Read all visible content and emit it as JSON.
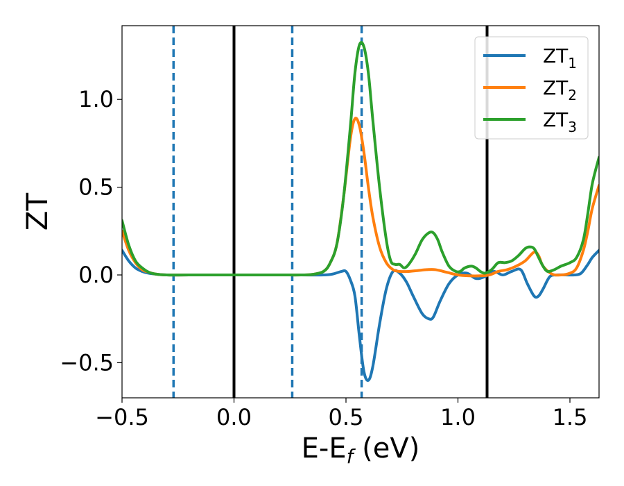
{
  "chart_data": {
    "type": "line",
    "xlabel": "E-E",
    "xlabel_sub": "f",
    "xlabel_unit": " (eV)",
    "ylabel": "ZT",
    "xlim": [
      -0.5,
      1.63
    ],
    "ylim": [
      -0.7,
      1.42
    ],
    "xticks": [
      -0.5,
      0.0,
      0.5,
      1.0,
      1.5
    ],
    "xtick_labels": [
      "−0.5",
      "0.0",
      "0.5",
      "1.0",
      "1.5"
    ],
    "yticks": [
      -0.5,
      0.0,
      0.5,
      1.0
    ],
    "ytick_labels": [
      "−0.5",
      "0.0",
      "0.5",
      "1.0"
    ],
    "grid": false,
    "legend_position": "top-right",
    "vlines": [
      {
        "x": -0.27,
        "style": "dashed",
        "color": "#1f77b4"
      },
      {
        "x": 0.0,
        "style": "solid",
        "color": "#000000"
      },
      {
        "x": 0.26,
        "style": "dashed",
        "color": "#1f77b4"
      },
      {
        "x": 0.57,
        "style": "dashed",
        "color": "#1f77b4"
      },
      {
        "x": 1.13,
        "style": "solid",
        "color": "#000000"
      }
    ],
    "series": [
      {
        "name": "ZT",
        "name_sub": "1",
        "color": "#1f77b4",
        "x": [
          -0.5,
          -0.47,
          -0.44,
          -0.41,
          -0.38,
          -0.35,
          -0.3,
          -0.2,
          0.0,
          0.2,
          0.3,
          0.4,
          0.44,
          0.48,
          0.5,
          0.52,
          0.54,
          0.56,
          0.58,
          0.6,
          0.62,
          0.65,
          0.68,
          0.71,
          0.74,
          0.77,
          0.8,
          0.84,
          0.87,
          0.89,
          0.92,
          0.96,
          1.0,
          1.04,
          1.08,
          1.12,
          1.16,
          1.2,
          1.24,
          1.28,
          1.31,
          1.34,
          1.36,
          1.38,
          1.41,
          1.44,
          1.48,
          1.52,
          1.55,
          1.58,
          1.6,
          1.63
        ],
        "values": [
          0.14,
          0.08,
          0.04,
          0.02,
          0.01,
          0.005,
          0.0,
          0.0,
          0.0,
          0.0,
          0.0,
          0.0,
          0.005,
          0.02,
          0.02,
          -0.03,
          -0.12,
          -0.35,
          -0.55,
          -0.6,
          -0.52,
          -0.28,
          -0.08,
          0.02,
          0.01,
          -0.04,
          -0.12,
          -0.22,
          -0.25,
          -0.24,
          -0.15,
          -0.05,
          0.0,
          0.01,
          -0.02,
          -0.01,
          0.02,
          0.0,
          0.02,
          0.03,
          -0.05,
          -0.12,
          -0.12,
          -0.08,
          -0.01,
          0.0,
          0.0,
          0.0,
          0.01,
          0.06,
          0.1,
          0.14
        ]
      },
      {
        "name": "ZT",
        "name_sub": "2",
        "color": "#ff7f0e",
        "x": [
          -0.5,
          -0.47,
          -0.44,
          -0.41,
          -0.38,
          -0.35,
          -0.3,
          -0.2,
          0.0,
          0.2,
          0.3,
          0.35,
          0.4,
          0.43,
          0.46,
          0.49,
          0.52,
          0.54,
          0.56,
          0.58,
          0.6,
          0.62,
          0.65,
          0.68,
          0.71,
          0.74,
          0.78,
          0.82,
          0.86,
          0.9,
          0.95,
          1.0,
          1.05,
          1.1,
          1.14,
          1.18,
          1.22,
          1.26,
          1.3,
          1.34,
          1.36,
          1.38,
          1.42,
          1.46,
          1.5,
          1.53,
          1.56,
          1.58,
          1.6,
          1.63
        ],
        "values": [
          0.25,
          0.14,
          0.07,
          0.03,
          0.015,
          0.005,
          0.0,
          0.0,
          0.0,
          0.0,
          0.0,
          0.003,
          0.02,
          0.07,
          0.18,
          0.45,
          0.78,
          0.89,
          0.85,
          0.7,
          0.5,
          0.33,
          0.16,
          0.07,
          0.03,
          0.02,
          0.02,
          0.025,
          0.03,
          0.03,
          0.015,
          0.0,
          -0.005,
          -0.005,
          0.0,
          0.02,
          0.03,
          0.05,
          0.08,
          0.13,
          0.11,
          0.05,
          0.005,
          0.0,
          0.01,
          0.04,
          0.14,
          0.25,
          0.38,
          0.51
        ]
      },
      {
        "name": "ZT",
        "name_sub": "3",
        "color": "#2ca02c",
        "x": [
          -0.5,
          -0.47,
          -0.44,
          -0.41,
          -0.38,
          -0.35,
          -0.3,
          -0.2,
          0.0,
          0.2,
          0.3,
          0.35,
          0.4,
          0.43,
          0.46,
          0.49,
          0.52,
          0.54,
          0.56,
          0.58,
          0.6,
          0.62,
          0.65,
          0.68,
          0.7,
          0.72,
          0.74,
          0.76,
          0.78,
          0.81,
          0.84,
          0.87,
          0.89,
          0.91,
          0.93,
          0.96,
          0.99,
          1.01,
          1.03,
          1.06,
          1.08,
          1.1,
          1.12,
          1.15,
          1.18,
          1.21,
          1.24,
          1.27,
          1.3,
          1.32,
          1.34,
          1.36,
          1.38,
          1.4,
          1.43,
          1.46,
          1.5,
          1.53,
          1.56,
          1.58,
          1.6,
          1.63
        ],
        "values": [
          0.31,
          0.17,
          0.08,
          0.04,
          0.015,
          0.005,
          0.0,
          0.0,
          0.0,
          0.0,
          0.0,
          0.003,
          0.02,
          0.07,
          0.18,
          0.45,
          0.85,
          1.15,
          1.31,
          1.3,
          1.15,
          0.88,
          0.5,
          0.2,
          0.08,
          0.06,
          0.06,
          0.04,
          0.06,
          0.12,
          0.2,
          0.24,
          0.24,
          0.2,
          0.13,
          0.05,
          0.02,
          0.02,
          0.04,
          0.05,
          0.04,
          0.02,
          0.01,
          0.03,
          0.07,
          0.07,
          0.08,
          0.11,
          0.15,
          0.16,
          0.15,
          0.1,
          0.05,
          0.02,
          0.03,
          0.05,
          0.07,
          0.1,
          0.2,
          0.35,
          0.52,
          0.67
        ]
      }
    ]
  }
}
